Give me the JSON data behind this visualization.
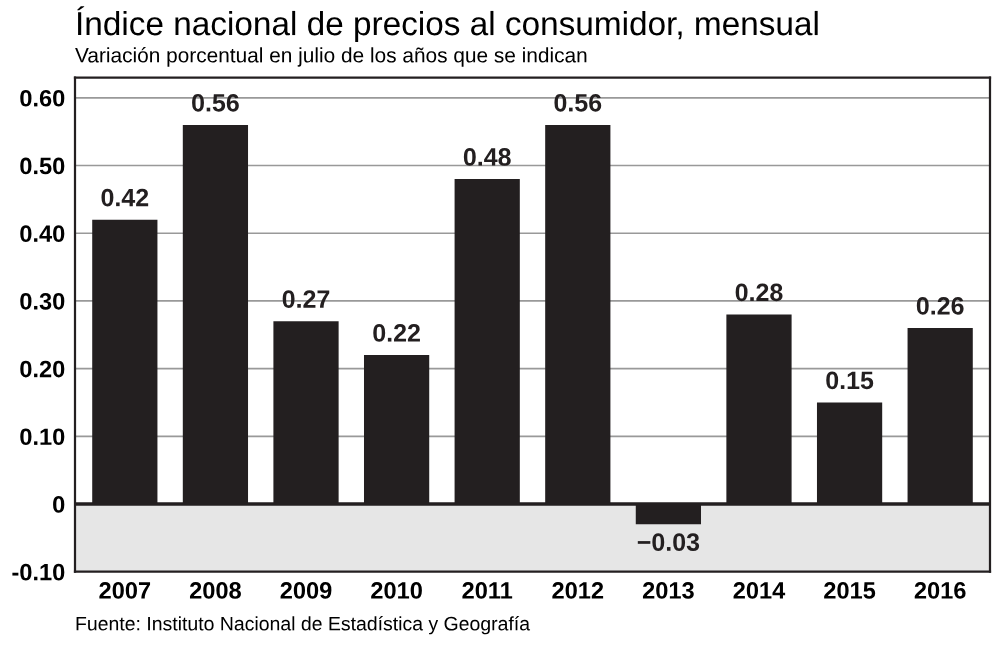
{
  "chart_data": {
    "type": "bar",
    "title": "Índice nacional de precios al consumidor, mensual",
    "subtitle": "Variación porcentual en julio de los años que se indican",
    "categories": [
      "2007",
      "2008",
      "2009",
      "2010",
      "2011",
      "2012",
      "2013",
      "2014",
      "2015",
      "2016"
    ],
    "values": [
      0.42,
      0.56,
      0.27,
      0.22,
      0.48,
      0.56,
      -0.03,
      0.28,
      0.15,
      0.26
    ],
    "value_labels": [
      "0.42",
      "0.56",
      "0.27",
      "0.22",
      "0.48",
      "0.56",
      "−0.03",
      "0.28",
      "0.15",
      "0.26"
    ],
    "color": "#231f20",
    "ylim": [
      -0.1,
      0.63
    ],
    "yticks": [
      {
        "value": -0.1,
        "label": "-0.10"
      },
      0,
      {
        "value": 0.1,
        "label": "0.10"
      },
      {
        "value": 0.2,
        "label": "0.20"
      },
      {
        "value": 0.3,
        "label": "0.30"
      },
      {
        "value": 0.4,
        "label": "0.40"
      },
      {
        "value": 0.5,
        "label": "0.50"
      },
      {
        "value": 0.6,
        "label": "0.60"
      }
    ],
    "grid": "y",
    "bands": [
      {
        "axis": "y",
        "from": -0.1,
        "to": 0,
        "color": "#e6e6e6"
      }
    ],
    "ref_lines": [
      {
        "axis": "y",
        "value": 0,
        "color": "#231f20"
      }
    ],
    "annotations": [
      "Fuente: Instituto Nacional de Estadística y Geografía"
    ]
  }
}
